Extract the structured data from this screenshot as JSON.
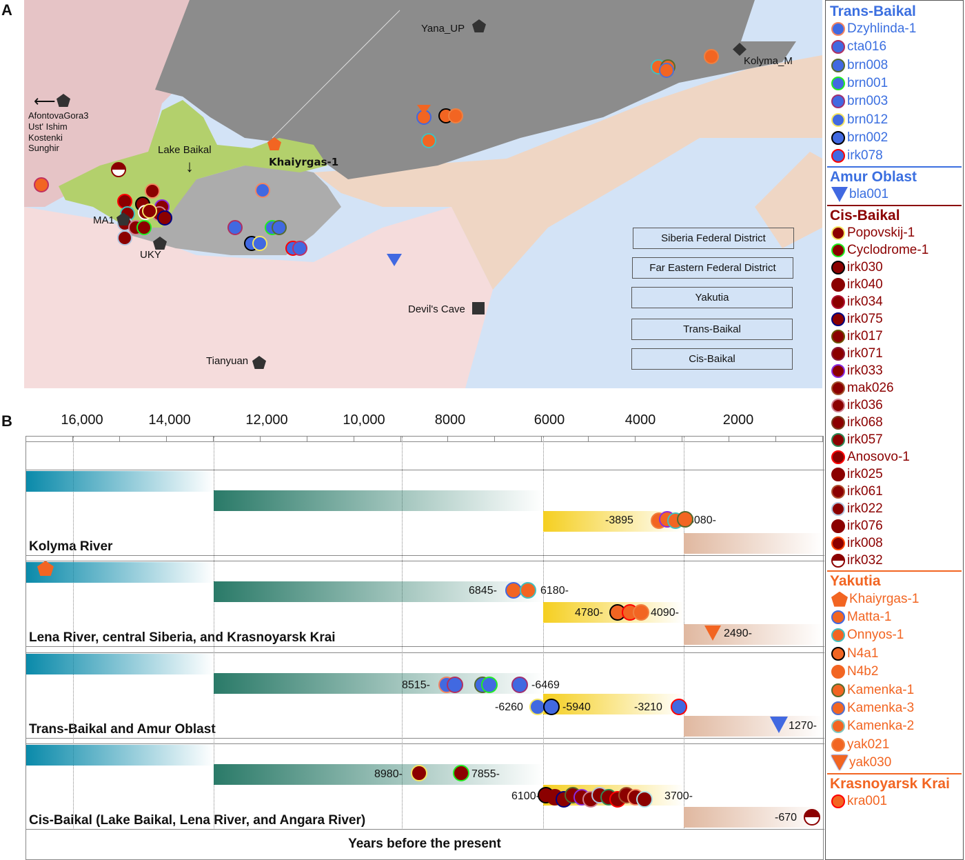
{
  "panel_labels": {
    "a": "A",
    "b": "B"
  },
  "map": {
    "regions": [
      {
        "label": "Siberia Federal District",
        "color": "#e6c4c6"
      },
      {
        "label": "Far Eastern Federal District",
        "color": "#efd6c4"
      },
      {
        "label": "Yakutia",
        "color": "#8c8c8c"
      },
      {
        "label": "Trans-Baikal",
        "color": "#acacac"
      },
      {
        "label": "Cis-Baikal",
        "color": "#b3d06c"
      }
    ],
    "sites": {
      "yana": "Yana_UP",
      "kolyma": "Kolyma_M",
      "west1": "AfontovaGora3",
      "west2": "Ust' Ishim",
      "west3": "Kostenki",
      "west4": "Sunghir",
      "lake": "Lake Baikal",
      "khaiyrgas": "Khaiyrgas-1",
      "ma1": "MA1",
      "uky": "UKY",
      "devils": "Devil's Cave",
      "tianyuan": "Tianyuan"
    }
  },
  "timeline": {
    "ticks": [
      "16,000",
      "14,000",
      "12,000",
      "10,000",
      "8000",
      "6000",
      "4000",
      "2000"
    ],
    "axis_title": "Years before the present",
    "rows": [
      {
        "title": "Kolyma River",
        "labels": [
          "-3895",
          "3080-"
        ]
      },
      {
        "title": "Lena River, central Siberia, and Krasnoyarsk Krai",
        "labels": [
          "6845-",
          "6180-",
          "4780-",
          "4090-",
          "2490-"
        ]
      },
      {
        "title": "Trans-Baikal and Amur Oblast",
        "labels": [
          "8515-",
          "-6469",
          "-6260",
          "-5940",
          "-3210",
          "1270-"
        ]
      },
      {
        "title": "Cis-Baikal (Lake Baikal, Lena River, and Angara River)",
        "labels": [
          "8980-",
          "7855-",
          "6100-",
          "3700-",
          "-670"
        ]
      }
    ]
  },
  "legend": [
    {
      "title": "Trans-Baikal",
      "color": "#3b6fe0",
      "fill": "#4169e1",
      "items": [
        [
          "Dzyhlinda-1",
          "#f4845f"
        ],
        [
          "cta016",
          "#b03060"
        ],
        [
          "brn008",
          "#556b2f"
        ],
        [
          "brn001",
          "#22ee22"
        ],
        [
          "brn003",
          "#a03070"
        ],
        [
          "brn012",
          "#f5e663"
        ],
        [
          "brn002",
          "#000000"
        ],
        [
          "irk078",
          "#ff0000"
        ]
      ]
    },
    {
      "title": "Amur Oblast",
      "color": "#3b6fe0",
      "fill": "#4169e1",
      "items": [
        [
          "bla001",
          "triangle"
        ]
      ]
    },
    {
      "title": "Cis-Baikal",
      "color": "#8b0000",
      "fill": "#8b0000",
      "items": [
        [
          "Popovskij-1",
          "#f5e663"
        ],
        [
          "Cyclodrome-1",
          "#22ee22"
        ],
        [
          "irk030",
          "#000000"
        ],
        [
          "irk040",
          "#8b0000"
        ],
        [
          "irk034",
          "#b01030"
        ],
        [
          "irk075",
          "#000080"
        ],
        [
          "irk017",
          "#6b5000"
        ],
        [
          "irk071",
          "#8b1a3a"
        ],
        [
          "irk033",
          "#8a2be2"
        ],
        [
          "mak026",
          "#a0522d"
        ],
        [
          "irk036",
          "#d08090"
        ],
        [
          "irk068",
          "#7b3f1f"
        ],
        [
          "irk057",
          "#2e8b57"
        ],
        [
          "Anosovo-1",
          "#ff0000"
        ],
        [
          "irk025",
          "#8b0000"
        ],
        [
          "irk061",
          "#b05030"
        ],
        [
          "irk022",
          "#b0c4de"
        ],
        [
          "irk076",
          "#8b0000"
        ],
        [
          "irk008",
          "#ff4500"
        ],
        [
          "irk032",
          "half"
        ]
      ]
    },
    {
      "title": "Yakutia",
      "color": "#f26522",
      "fill": "#f26522",
      "items": [
        [
          "Khaiyrgas-1",
          "pentagon"
        ],
        [
          "Matta-1",
          "#4169e1"
        ],
        [
          "Onnyos-1",
          "#40c0c0"
        ],
        [
          "N4a1",
          "#000000"
        ],
        [
          "N4b2",
          "#f26522"
        ],
        [
          "Kamenka-1",
          "#556b2f"
        ],
        [
          "Kamenka-3",
          "#5070d0"
        ],
        [
          "Kamenka-2",
          "#80c8c0"
        ],
        [
          "yak021",
          "#f08040"
        ],
        [
          "yak030",
          "triangle-down"
        ]
      ]
    },
    {
      "title": "Krasnoyarsk Krai",
      "color": "#f26522",
      "fill": "#f26522",
      "items": [
        [
          "kra001",
          "#ff0000"
        ]
      ]
    }
  ]
}
